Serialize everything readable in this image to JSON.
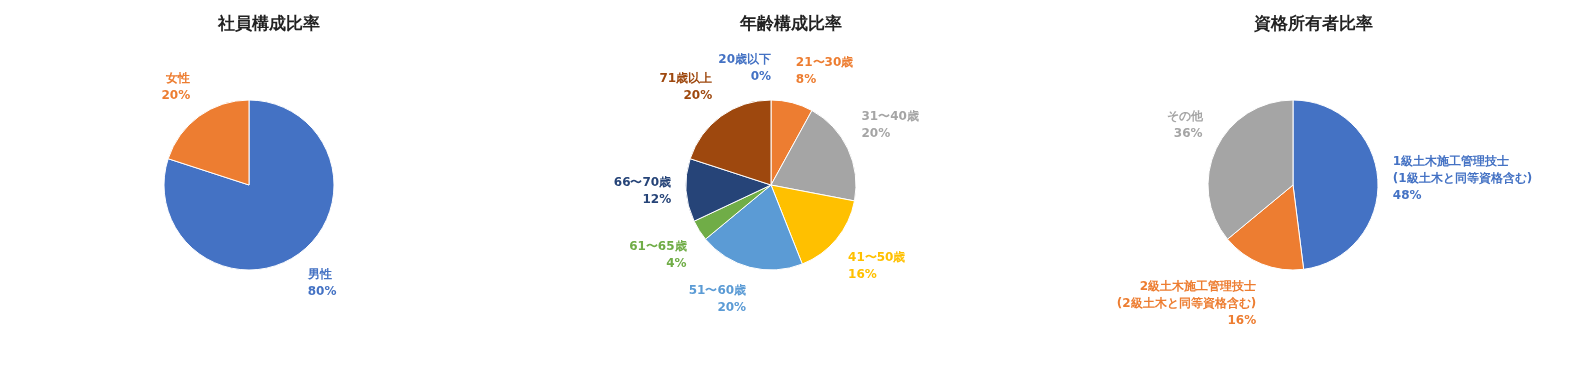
{
  "chart_data": [
    {
      "type": "pie",
      "title": "社員構成比率",
      "categories": [
        "男性",
        "女性"
      ],
      "values": [
        80,
        20
      ],
      "colors": [
        "#4472c4",
        "#ed7d31"
      ],
      "value_labels": [
        "80%",
        "20%"
      ],
      "legend": false
    },
    {
      "type": "pie",
      "title": "年齢構成比率",
      "categories": [
        "20歳以下",
        "21〜30歳",
        "31〜40歳",
        "41〜50歳",
        "51〜60歳",
        "61〜65歳",
        "66〜70歳",
        "71歳以上"
      ],
      "values": [
        0,
        8,
        20,
        16,
        20,
        4,
        12,
        20
      ],
      "colors": [
        "#4472c4",
        "#ed7d31",
        "#a5a5a5",
        "#ffc000",
        "#5b9bd5",
        "#70ad47",
        "#264478",
        "#9e480e"
      ],
      "value_labels": [
        "0%",
        "8%",
        "20%",
        "16%",
        "20%",
        "4%",
        "12%",
        "20%"
      ],
      "legend": false
    },
    {
      "type": "pie",
      "title": "資格所有者比率",
      "categories": [
        "1級土木施工管理技士\n(1級土木と同等資格含む)",
        "2級土木施工管理技士\n(2級土木と同等資格含む)",
        "その他"
      ],
      "values": [
        48,
        16,
        36
      ],
      "colors": [
        "#4472c4",
        "#ed7d31",
        "#a5a5a5"
      ],
      "value_labels": [
        "48%",
        "16%",
        "36%"
      ],
      "legend": false
    }
  ]
}
